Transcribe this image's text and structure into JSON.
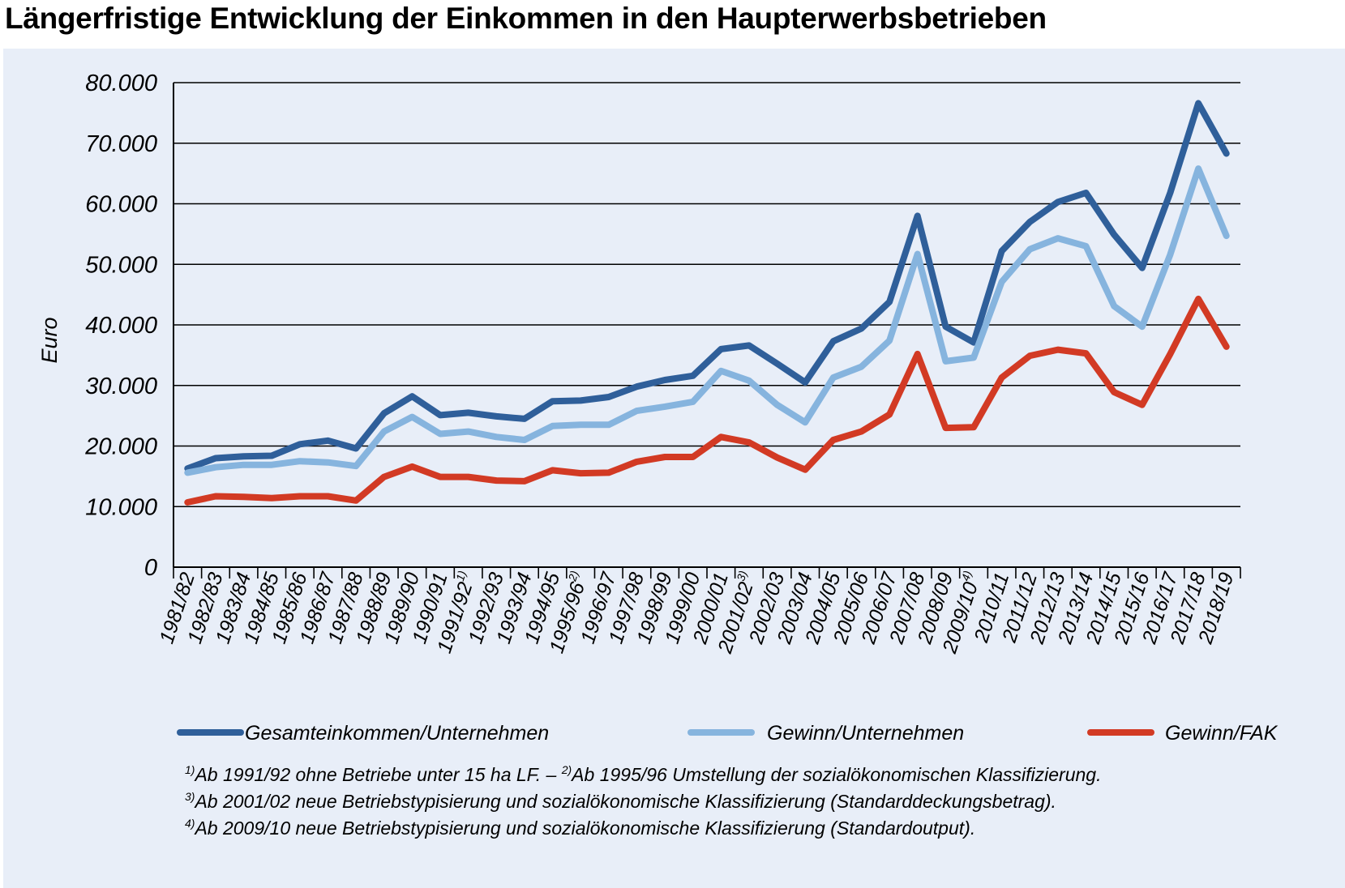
{
  "chart_data": {
    "type": "line",
    "title": "Längerfristige Entwicklung der Einkommen in den Haupterwerbsbetrieben",
    "ylabel": "Euro",
    "xlabel": "",
    "ylim": [
      0,
      80000
    ],
    "yticks": [
      {
        "value": 0,
        "label": "0"
      },
      {
        "value": 10000,
        "label": "10.000"
      },
      {
        "value": 20000,
        "label": "20.000"
      },
      {
        "value": 30000,
        "label": "30.000"
      },
      {
        "value": 40000,
        "label": "40.000"
      },
      {
        "value": 50000,
        "label": "50.000"
      },
      {
        "value": 60000,
        "label": "60.000"
      },
      {
        "value": 70000,
        "label": "70.000"
      },
      {
        "value": 80000,
        "label": "80.000"
      }
    ],
    "grid": true,
    "categories": [
      "1981/82",
      "1982/83",
      "1983/84",
      "1984/85",
      "1985/86",
      "1986/87",
      "1987/88",
      "1988/89",
      "1989/90",
      "1990/91",
      "1991/92",
      "1992/93",
      "1993/94",
      "1994/95",
      "1995/96",
      "1996/97",
      "1997/98",
      "1998/99",
      "1999/00",
      "2000/01",
      "2001/02",
      "2002/03",
      "2003/04",
      "2004/05",
      "2005/06",
      "2006/07",
      "2007/08",
      "2008/09",
      "2009/10",
      "2010/11",
      "2011/12",
      "2012/13",
      "2013/14",
      "2014/15",
      "2015/16",
      "2016/17",
      "2017/18",
      "2018/19"
    ],
    "category_notes": {
      "1991/92": "1)",
      "1995/96": "2)",
      "2001/02": "3)",
      "2009/10": "4)"
    },
    "legend_placement": "bottom",
    "series": [
      {
        "name": "Gesamteinkommen/Unternehmen",
        "color": "#2f5f9a",
        "values": [
          16300,
          18000,
          18300,
          18400,
          20300,
          20900,
          19600,
          25400,
          28200,
          25100,
          25500,
          24900,
          24500,
          27400,
          27500,
          28100,
          29800,
          30900,
          31600,
          36000,
          36600,
          33600,
          30500,
          37300,
          39400,
          43800,
          58000,
          39700,
          37100,
          52200,
          57000,
          60300,
          61800,
          54900,
          49400,
          61800,
          76600,
          68300
        ]
      },
      {
        "name": "Gewinn/Unternehmen",
        "color": "#86b4de",
        "values": [
          15600,
          16500,
          16900,
          16900,
          17500,
          17300,
          16700,
          22400,
          24800,
          22000,
          22400,
          21500,
          21000,
          23300,
          23500,
          23500,
          25800,
          26500,
          27300,
          32400,
          30800,
          26800,
          23900,
          31300,
          33100,
          37400,
          51700,
          34000,
          34600,
          47100,
          52500,
          54300,
          53000,
          43100,
          39700,
          51600,
          65800,
          54700
        ]
      },
      {
        "name": "Gewinn/FAK",
        "color": "#d23a24",
        "values": [
          10700,
          11700,
          11600,
          11400,
          11700,
          11700,
          11000,
          14900,
          16600,
          14900,
          14900,
          14300,
          14200,
          16000,
          15500,
          15600,
          17400,
          18200,
          18200,
          21500,
          20600,
          18100,
          16100,
          21000,
          22400,
          25200,
          35200,
          23000,
          23100,
          31300,
          34900,
          35900,
          35300,
          28900,
          26800,
          35200,
          44300,
          36400
        ]
      }
    ],
    "footnotes": {
      "line1": {
        "n1": "1)",
        "t1": "Ab 1991/92 ohne Betriebe unter 15 ha LF. – ",
        "n2": "2)",
        "t2": "Ab 1995/96 Umstellung der sozialökonomischen Klassifizierung."
      },
      "line2": {
        "n": "3)",
        "t": "Ab 2001/02 neue Betriebstypisierung und sozialökonomische Klassifizierung (Standarddeckungsbetrag)."
      },
      "line3": {
        "n": "4)",
        "t": "Ab 2009/10 neue Betriebstypisierung und sozialökonomische Klassifizierung (Standardoutput)."
      }
    }
  },
  "colors": {
    "panel_background": "#e8eef8",
    "grid": "#000000"
  }
}
